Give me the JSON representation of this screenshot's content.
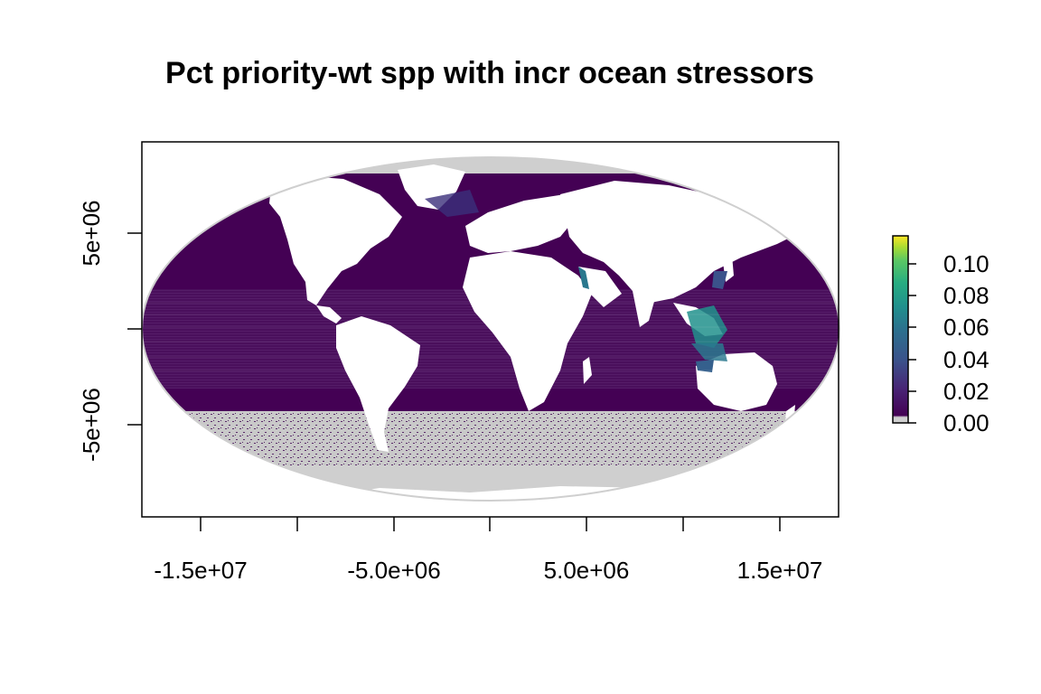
{
  "title": "Pct priority-wt spp with incr ocean stressors",
  "x_axis": {
    "tick_labels": [
      "-1.5e+07",
      "-5.0e+06",
      "5.0e+06",
      "1.5e+07"
    ]
  },
  "y_axis": {
    "tick_labels": [
      "5e+06",
      "-5e+06"
    ]
  },
  "legend": {
    "tick_labels": [
      "0.10",
      "0.08",
      "0.06",
      "0.04",
      "0.02",
      "0.00"
    ]
  },
  "colors": {
    "no_data": "#d0d0d0",
    "land": "#ffffff",
    "low": "#440154",
    "low_mid": "#3b2f7a",
    "mid": "#21908c",
    "high": "#fde725"
  },
  "chart_data": {
    "type": "heatmap",
    "projection": "Mollweide",
    "title": "Pct priority-wt spp with incr ocean stressors",
    "x_ticks": [
      -15000000,
      -10000000,
      -5000000,
      0,
      5000000,
      10000000,
      15000000
    ],
    "x_tick_labels": [
      "-1.5e+07",
      "-5.0e+06",
      "5.0e+06",
      "1.5e+07"
    ],
    "y_ticks": [
      5000000,
      0,
      -5000000
    ],
    "y_tick_labels": [
      "5e+06",
      "-5e+06"
    ],
    "color_scale": {
      "min": 0.0,
      "max": 0.115,
      "ticks": [
        0.0,
        0.02,
        0.04,
        0.06,
        0.08,
        0.1
      ],
      "palette": [
        "#d0d0d0",
        "#440154",
        "#472c7a",
        "#3b518b",
        "#2c718e",
        "#21908d",
        "#27ad81",
        "#5cc863",
        "#aadc32",
        "#fde725"
      ]
    },
    "legend_position": "right"
  }
}
